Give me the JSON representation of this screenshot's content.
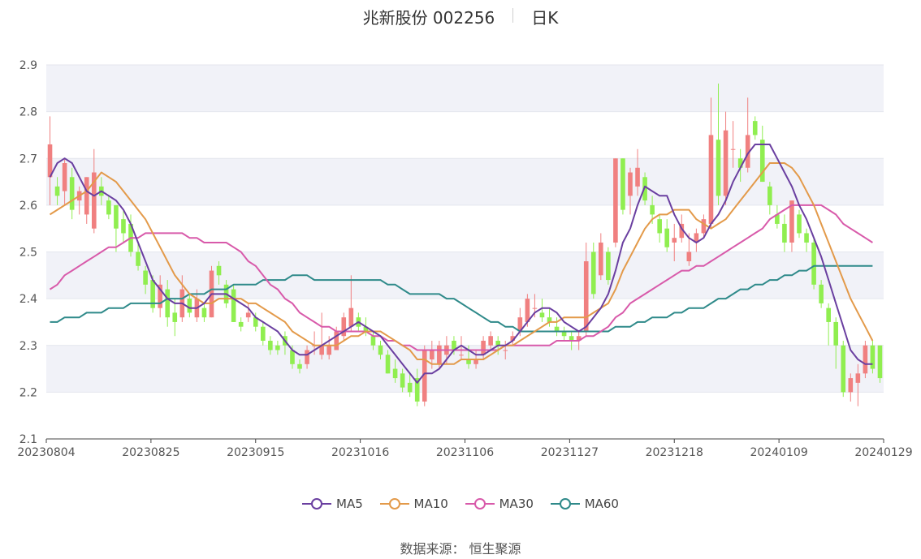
{
  "header": {
    "stock": "兆新股份 002256",
    "period": "日K"
  },
  "source": "数据来源： 恒生聚源",
  "colors": {
    "up": "#f08080",
    "down": "#90ee50",
    "MA5": "#6a3fa0",
    "MA10": "#e39a4a",
    "MA30": "#d85aaa",
    "MA60": "#2f8a8a",
    "band": "#f1f2f8"
  },
  "chart_data": {
    "type": "candlestick",
    "ylim": [
      2.1,
      2.9
    ],
    "yticks": [
      "2.1",
      "2.2",
      "2.3",
      "2.4",
      "2.5",
      "2.6",
      "2.7",
      "2.8",
      "2.9"
    ],
    "xtick_labels": [
      "20230804",
      "20230825",
      "20230915",
      "20231016",
      "20231106",
      "20231127",
      "20231218",
      "20240109",
      "20240129"
    ],
    "legend": [
      "MA5",
      "MA10",
      "MA30",
      "MA60"
    ],
    "candles": [
      [
        2.66,
        2.79,
        2.6,
        2.73
      ],
      [
        2.64,
        2.66,
        2.6,
        2.62
      ],
      [
        2.63,
        2.7,
        2.6,
        2.69
      ],
      [
        2.66,
        2.68,
        2.57,
        2.59
      ],
      [
        2.61,
        2.64,
        2.58,
        2.63
      ],
      [
        2.58,
        2.66,
        2.56,
        2.66
      ],
      [
        2.55,
        2.72,
        2.54,
        2.67
      ],
      [
        2.64,
        2.66,
        2.6,
        2.62
      ],
      [
        2.61,
        2.62,
        2.57,
        2.58
      ],
      [
        2.6,
        2.6,
        2.5,
        2.55
      ],
      [
        2.57,
        2.59,
        2.52,
        2.54
      ],
      [
        2.56,
        2.58,
        2.49,
        2.5
      ],
      [
        2.5,
        2.52,
        2.46,
        2.47
      ],
      [
        2.46,
        2.47,
        2.41,
        2.43
      ],
      [
        2.44,
        2.45,
        2.37,
        2.38
      ],
      [
        2.38,
        2.45,
        2.36,
        2.43
      ],
      [
        2.42,
        2.44,
        2.34,
        2.36
      ],
      [
        2.37,
        2.4,
        2.32,
        2.35
      ],
      [
        2.36,
        2.45,
        2.35,
        2.42
      ],
      [
        2.4,
        2.41,
        2.36,
        2.37
      ],
      [
        2.36,
        2.42,
        2.35,
        2.4
      ],
      [
        2.38,
        2.39,
        2.35,
        2.36
      ],
      [
        2.36,
        2.47,
        2.36,
        2.46
      ],
      [
        2.47,
        2.48,
        2.43,
        2.45
      ],
      [
        2.43,
        2.44,
        2.38,
        2.39
      ],
      [
        2.42,
        2.43,
        2.35,
        2.35
      ],
      [
        2.35,
        2.36,
        2.33,
        2.34
      ],
      [
        2.36,
        2.39,
        2.35,
        2.37
      ],
      [
        2.36,
        2.37,
        2.33,
        2.34
      ],
      [
        2.34,
        2.35,
        2.3,
        2.31
      ],
      [
        2.31,
        2.32,
        2.28,
        2.29
      ],
      [
        2.3,
        2.31,
        2.28,
        2.29
      ],
      [
        2.32,
        2.33,
        2.28,
        2.3
      ],
      [
        2.29,
        2.3,
        2.25,
        2.26
      ],
      [
        2.26,
        2.27,
        2.24,
        2.25
      ],
      [
        2.26,
        2.3,
        2.25,
        2.29
      ],
      [
        2.3,
        2.33,
        2.28,
        2.3
      ],
      [
        2.28,
        2.37,
        2.27,
        2.3
      ],
      [
        2.28,
        2.32,
        2.27,
        2.3
      ],
      [
        2.29,
        2.34,
        2.29,
        2.33
      ],
      [
        2.32,
        2.37,
        2.31,
        2.36
      ],
      [
        2.34,
        2.45,
        2.33,
        2.38
      ],
      [
        2.36,
        2.37,
        2.33,
        2.34
      ],
      [
        2.34,
        2.36,
        2.32,
        2.33
      ],
      [
        2.32,
        2.33,
        2.29,
        2.3
      ],
      [
        2.3,
        2.31,
        2.27,
        2.28
      ],
      [
        2.28,
        2.29,
        2.24,
        2.24
      ],
      [
        2.25,
        2.27,
        2.22,
        2.23
      ],
      [
        2.24,
        2.25,
        2.2,
        2.21
      ],
      [
        2.22,
        2.24,
        2.19,
        2.2
      ],
      [
        2.23,
        2.25,
        2.17,
        2.18
      ],
      [
        2.18,
        2.3,
        2.17,
        2.29
      ],
      [
        2.27,
        2.31,
        2.25,
        2.29
      ],
      [
        2.26,
        2.31,
        2.25,
        2.3
      ],
      [
        2.28,
        2.32,
        2.26,
        2.3
      ],
      [
        2.31,
        2.32,
        2.28,
        2.29
      ],
      [
        2.28,
        2.32,
        2.27,
        2.28
      ],
      [
        2.27,
        2.3,
        2.25,
        2.26
      ],
      [
        2.26,
        2.29,
        2.25,
        2.27
      ],
      [
        2.28,
        2.32,
        2.27,
        2.31
      ],
      [
        2.3,
        2.33,
        2.29,
        2.32
      ],
      [
        2.31,
        2.32,
        2.28,
        2.3
      ],
      [
        2.29,
        2.31,
        2.27,
        2.29
      ],
      [
        2.31,
        2.33,
        2.3,
        2.32
      ],
      [
        2.33,
        2.38,
        2.32,
        2.36
      ],
      [
        2.35,
        2.41,
        2.34,
        2.4
      ],
      [
        2.38,
        2.41,
        2.36,
        2.38
      ],
      [
        2.37,
        2.4,
        2.35,
        2.36
      ],
      [
        2.36,
        2.38,
        2.34,
        2.35
      ],
      [
        2.34,
        2.36,
        2.32,
        2.33
      ],
      [
        2.33,
        2.34,
        2.31,
        2.32
      ],
      [
        2.32,
        2.33,
        2.29,
        2.31
      ],
      [
        2.31,
        2.33,
        2.29,
        2.32
      ],
      [
        2.33,
        2.52,
        2.32,
        2.48
      ],
      [
        2.5,
        2.52,
        2.4,
        2.41
      ],
      [
        2.45,
        2.54,
        2.44,
        2.52
      ],
      [
        2.5,
        2.51,
        2.43,
        2.44
      ],
      [
        2.52,
        2.7,
        2.51,
        2.7
      ],
      [
        2.7,
        2.7,
        2.58,
        2.59
      ],
      [
        2.62,
        2.68,
        2.58,
        2.67
      ],
      [
        2.64,
        2.72,
        2.62,
        2.68
      ],
      [
        2.66,
        2.67,
        2.6,
        2.61
      ],
      [
        2.6,
        2.62,
        2.56,
        2.58
      ],
      [
        2.57,
        2.58,
        2.52,
        2.54
      ],
      [
        2.55,
        2.57,
        2.5,
        2.51
      ],
      [
        2.52,
        2.56,
        2.48,
        2.53
      ],
      [
        2.53,
        2.58,
        2.52,
        2.56
      ],
      [
        2.48,
        2.54,
        2.47,
        2.5
      ],
      [
        2.52,
        2.55,
        2.5,
        2.54
      ],
      [
        2.54,
        2.58,
        2.53,
        2.57
      ],
      [
        2.56,
        2.83,
        2.55,
        2.75
      ],
      [
        2.74,
        2.86,
        2.6,
        2.62
      ],
      [
        2.62,
        2.8,
        2.6,
        2.76
      ],
      [
        2.72,
        2.78,
        2.68,
        2.72
      ],
      [
        2.7,
        2.72,
        2.65,
        2.68
      ],
      [
        2.68,
        2.83,
        2.67,
        2.75
      ],
      [
        2.78,
        2.79,
        2.74,
        2.75
      ],
      [
        2.74,
        2.77,
        2.65,
        2.65
      ],
      [
        2.64,
        2.65,
        2.58,
        2.6
      ],
      [
        2.58,
        2.6,
        2.55,
        2.56
      ],
      [
        2.56,
        2.58,
        2.5,
        2.52
      ],
      [
        2.52,
        2.61,
        2.5,
        2.61
      ],
      [
        2.58,
        2.59,
        2.53,
        2.54
      ],
      [
        2.54,
        2.55,
        2.5,
        2.52
      ],
      [
        2.52,
        2.53,
        2.42,
        2.43
      ],
      [
        2.43,
        2.44,
        2.38,
        2.39
      ],
      [
        2.38,
        2.39,
        2.3,
        2.35
      ],
      [
        2.35,
        2.36,
        2.25,
        2.3
      ],
      [
        2.3,
        2.31,
        2.19,
        2.2
      ],
      [
        2.2,
        2.24,
        2.18,
        2.23
      ],
      [
        2.22,
        2.26,
        2.17,
        2.24
      ],
      [
        2.24,
        2.31,
        2.23,
        2.3
      ],
      [
        2.3,
        2.31,
        2.24,
        2.25
      ],
      [
        2.3,
        2.3,
        2.22,
        2.23
      ]
    ],
    "ma": {
      "MA5": [
        2.66,
        2.69,
        2.7,
        2.69,
        2.66,
        2.63,
        2.62,
        2.63,
        2.62,
        2.61,
        2.59,
        2.56,
        2.52,
        2.48,
        2.44,
        2.42,
        2.4,
        2.39,
        2.39,
        2.38,
        2.38,
        2.39,
        2.41,
        2.41,
        2.41,
        2.4,
        2.39,
        2.38,
        2.36,
        2.35,
        2.34,
        2.33,
        2.31,
        2.29,
        2.28,
        2.28,
        2.29,
        2.3,
        2.31,
        2.32,
        2.33,
        2.34,
        2.35,
        2.34,
        2.33,
        2.32,
        2.3,
        2.28,
        2.26,
        2.24,
        2.22,
        2.24,
        2.24,
        2.25,
        2.27,
        2.29,
        2.3,
        2.29,
        2.28,
        2.28,
        2.29,
        2.3,
        2.3,
        2.31,
        2.33,
        2.35,
        2.37,
        2.38,
        2.38,
        2.37,
        2.35,
        2.34,
        2.33,
        2.34,
        2.36,
        2.38,
        2.41,
        2.46,
        2.52,
        2.55,
        2.6,
        2.64,
        2.63,
        2.62,
        2.62,
        2.58,
        2.55,
        2.53,
        2.52,
        2.53,
        2.56,
        2.58,
        2.61,
        2.65,
        2.68,
        2.71,
        2.73,
        2.73,
        2.73,
        2.7,
        2.67,
        2.64,
        2.6,
        2.57,
        2.53,
        2.49,
        2.44,
        2.39,
        2.34,
        2.29,
        2.27,
        2.26,
        2.26
      ],
      "MA10": [
        2.58,
        2.59,
        2.6,
        2.61,
        2.62,
        2.63,
        2.65,
        2.67,
        2.66,
        2.65,
        2.63,
        2.61,
        2.59,
        2.57,
        2.54,
        2.51,
        2.48,
        2.45,
        2.43,
        2.41,
        2.4,
        2.39,
        2.39,
        2.4,
        2.4,
        2.4,
        2.4,
        2.39,
        2.39,
        2.38,
        2.37,
        2.36,
        2.35,
        2.33,
        2.32,
        2.31,
        2.3,
        2.3,
        2.3,
        2.3,
        2.31,
        2.32,
        2.32,
        2.33,
        2.33,
        2.33,
        2.32,
        2.31,
        2.3,
        2.29,
        2.27,
        2.27,
        2.26,
        2.26,
        2.26,
        2.26,
        2.27,
        2.27,
        2.27,
        2.27,
        2.28,
        2.29,
        2.3,
        2.3,
        2.31,
        2.32,
        2.33,
        2.34,
        2.35,
        2.35,
        2.36,
        2.36,
        2.36,
        2.36,
        2.37,
        2.38,
        2.39,
        2.42,
        2.46,
        2.49,
        2.52,
        2.55,
        2.57,
        2.58,
        2.58,
        2.59,
        2.59,
        2.59,
        2.57,
        2.56,
        2.55,
        2.56,
        2.57,
        2.59,
        2.61,
        2.63,
        2.65,
        2.67,
        2.69,
        2.69,
        2.69,
        2.68,
        2.66,
        2.63,
        2.6,
        2.56,
        2.52,
        2.48,
        2.44,
        2.4,
        2.37,
        2.34,
        2.31
      ],
      "MA30": [
        2.42,
        2.43,
        2.45,
        2.46,
        2.47,
        2.48,
        2.49,
        2.5,
        2.51,
        2.51,
        2.52,
        2.53,
        2.53,
        2.54,
        2.54,
        2.54,
        2.54,
        2.54,
        2.54,
        2.53,
        2.53,
        2.52,
        2.52,
        2.52,
        2.52,
        2.51,
        2.5,
        2.48,
        2.47,
        2.45,
        2.43,
        2.42,
        2.4,
        2.39,
        2.37,
        2.36,
        2.35,
        2.34,
        2.34,
        2.33,
        2.33,
        2.33,
        2.33,
        2.33,
        2.32,
        2.32,
        2.31,
        2.31,
        2.3,
        2.3,
        2.29,
        2.29,
        2.29,
        2.29,
        2.29,
        2.29,
        2.29,
        2.29,
        2.29,
        2.29,
        2.29,
        2.29,
        2.3,
        2.3,
        2.3,
        2.3,
        2.3,
        2.3,
        2.3,
        2.31,
        2.31,
        2.31,
        2.31,
        2.32,
        2.32,
        2.33,
        2.34,
        2.36,
        2.37,
        2.39,
        2.4,
        2.41,
        2.42,
        2.43,
        2.44,
        2.45,
        2.46,
        2.46,
        2.47,
        2.47,
        2.48,
        2.49,
        2.5,
        2.51,
        2.52,
        2.53,
        2.54,
        2.55,
        2.57,
        2.58,
        2.59,
        2.6,
        2.6,
        2.6,
        2.6,
        2.6,
        2.59,
        2.58,
        2.56,
        2.55,
        2.54,
        2.53,
        2.52
      ],
      "MA60": [
        2.35,
        2.35,
        2.36,
        2.36,
        2.36,
        2.37,
        2.37,
        2.37,
        2.38,
        2.38,
        2.38,
        2.39,
        2.39,
        2.39,
        2.39,
        2.39,
        2.4,
        2.4,
        2.4,
        2.41,
        2.41,
        2.41,
        2.42,
        2.42,
        2.42,
        2.43,
        2.43,
        2.43,
        2.43,
        2.44,
        2.44,
        2.44,
        2.44,
        2.45,
        2.45,
        2.45,
        2.44,
        2.44,
        2.44,
        2.44,
        2.44,
        2.44,
        2.44,
        2.44,
        2.44,
        2.44,
        2.43,
        2.43,
        2.42,
        2.41,
        2.41,
        2.41,
        2.41,
        2.41,
        2.4,
        2.4,
        2.39,
        2.38,
        2.37,
        2.36,
        2.35,
        2.35,
        2.34,
        2.34,
        2.33,
        2.33,
        2.33,
        2.33,
        2.33,
        2.33,
        2.33,
        2.33,
        2.33,
        2.33,
        2.33,
        2.33,
        2.33,
        2.34,
        2.34,
        2.34,
        2.35,
        2.35,
        2.36,
        2.36,
        2.36,
        2.37,
        2.37,
        2.38,
        2.38,
        2.38,
        2.39,
        2.4,
        2.4,
        2.41,
        2.42,
        2.42,
        2.43,
        2.43,
        2.44,
        2.44,
        2.45,
        2.45,
        2.46,
        2.46,
        2.47,
        2.47,
        2.47,
        2.47,
        2.47,
        2.47,
        2.47,
        2.47,
        2.47
      ]
    }
  }
}
